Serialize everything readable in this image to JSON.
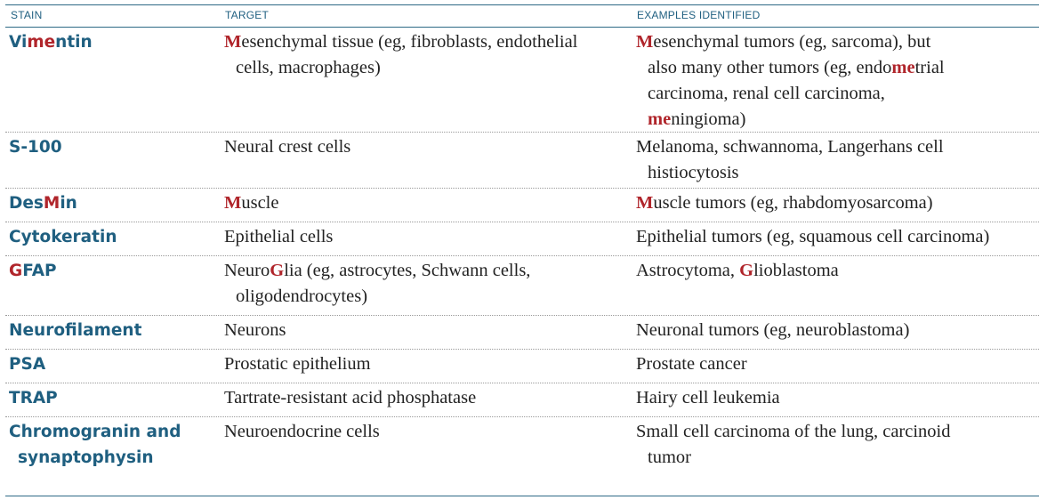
{
  "headers": {
    "stain": "STAIN",
    "target": "TARGET",
    "examples": "EXAMPLES IDENTIFIED"
  },
  "rows": [
    {
      "stain": [
        {
          "t": "Vi"
        },
        {
          "t": "me",
          "hl": true
        },
        {
          "t": "ntin"
        }
      ],
      "target": [
        [
          {
            "t": "M",
            "hl": true
          },
          {
            "t": "esenchymal tissue (eg, fibroblasts, endothelial"
          }
        ],
        [
          {
            "t": "cells, macrophages)"
          }
        ]
      ],
      "examples": [
        [
          {
            "t": "M",
            "hl": true
          },
          {
            "t": "esenchymal tumors (eg, sarcoma), but"
          }
        ],
        [
          {
            "t": "also many other tumors (eg, endo"
          },
          {
            "t": "me",
            "hl": true
          },
          {
            "t": "trial"
          }
        ],
        [
          {
            "t": "carcinoma, renal cell carcinoma,"
          }
        ],
        [
          {
            "t": "me",
            "hl": true
          },
          {
            "t": "ningioma)"
          }
        ]
      ]
    },
    {
      "stain": [
        {
          "t": "S-100"
        }
      ],
      "target": [
        [
          {
            "t": "Neural crest cells"
          }
        ]
      ],
      "examples": [
        [
          {
            "t": "Melanoma, schwannoma, Langerhans cell"
          }
        ],
        [
          {
            "t": "histiocytosis"
          }
        ]
      ]
    },
    {
      "stain": [
        {
          "t": "Des"
        },
        {
          "t": "M",
          "hl": true
        },
        {
          "t": "in"
        }
      ],
      "target": [
        [
          {
            "t": "M",
            "hl": true
          },
          {
            "t": "uscle"
          }
        ]
      ],
      "examples": [
        [
          {
            "t": "M",
            "hl": true
          },
          {
            "t": "uscle tumors (eg, rhabdomyosarcoma)"
          }
        ]
      ]
    },
    {
      "stain": [
        {
          "t": "Cytokeratin"
        }
      ],
      "target": [
        [
          {
            "t": "Epithelial cells"
          }
        ]
      ],
      "examples": [
        [
          {
            "t": "Epithelial tumors (eg, squamous cell carcinoma)"
          }
        ]
      ]
    },
    {
      "stain": [
        {
          "t": "G",
          "hl": true
        },
        {
          "t": "FAP"
        }
      ],
      "target": [
        [
          {
            "t": "Neuro"
          },
          {
            "t": "G",
            "hl": true
          },
          {
            "t": "lia (eg, astrocytes, Schwann cells,"
          }
        ],
        [
          {
            "t": "oligodendrocytes)"
          }
        ]
      ],
      "examples": [
        [
          {
            "t": "Astrocytoma, "
          },
          {
            "t": "G",
            "hl": true
          },
          {
            "t": "lioblastoma"
          }
        ]
      ]
    },
    {
      "stain": [
        {
          "t": "Neurofilament"
        }
      ],
      "target": [
        [
          {
            "t": "Neurons"
          }
        ]
      ],
      "examples": [
        [
          {
            "t": "Neuronal tumors (eg, neuroblastoma)"
          }
        ]
      ]
    },
    {
      "stain": [
        {
          "t": "PSA"
        }
      ],
      "target": [
        [
          {
            "t": "Prostatic epithelium"
          }
        ]
      ],
      "examples": [
        [
          {
            "t": "Prostate cancer"
          }
        ]
      ]
    },
    {
      "stain": [
        {
          "t": "TRAP"
        }
      ],
      "target": [
        [
          {
            "t": "Tartrate-resistant acid phosphatase"
          }
        ]
      ],
      "examples": [
        [
          {
            "t": "Hairy cell leukemia"
          }
        ]
      ]
    },
    {
      "stain": [
        {
          "t": "Chromogranin and"
        },
        {
          "t": "synaptophysin",
          "line2": true
        }
      ],
      "target": [
        [
          {
            "t": "Neuroendocrine cells"
          }
        ]
      ],
      "examples": [
        [
          {
            "t": "Small cell carcinoma of the lung, carcinoid"
          }
        ],
        [
          {
            "t": "tumor"
          }
        ]
      ]
    }
  ]
}
